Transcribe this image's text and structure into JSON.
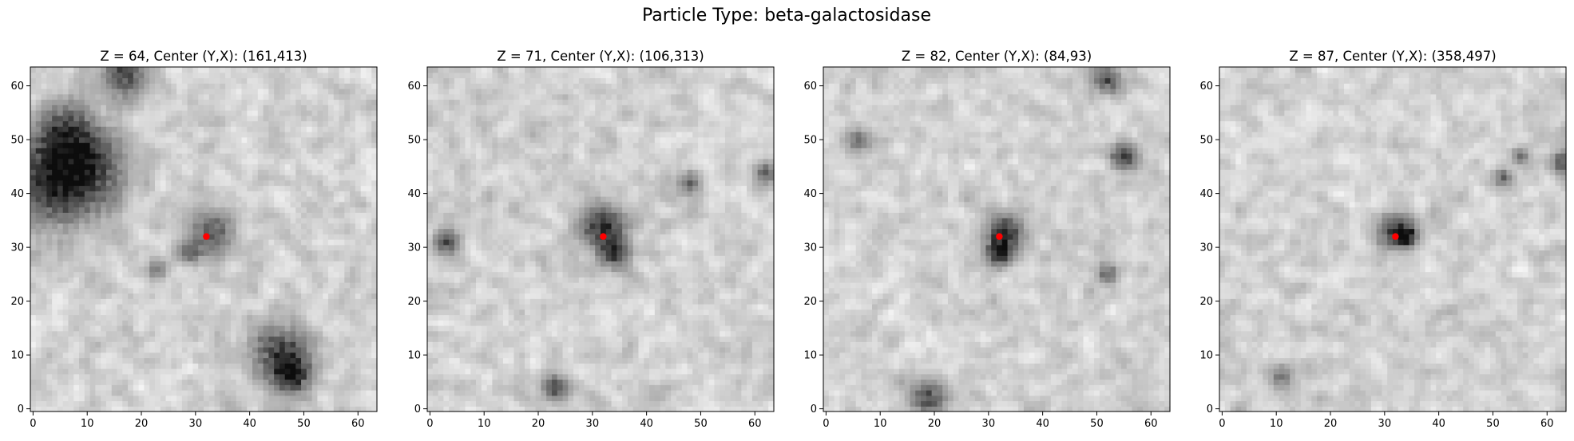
{
  "figure": {
    "suptitle": "Particle Type: beta-galactosidase"
  },
  "chart_data": [
    {
      "type": "heatmap",
      "title": "Z = 64, Center (Y,X): (161,413)",
      "xlim": [
        0,
        63
      ],
      "ylim": [
        0,
        63
      ],
      "xticks": [
        0,
        10,
        20,
        30,
        40,
        50,
        60
      ],
      "yticks": [
        0,
        10,
        20,
        30,
        40,
        50,
        60
      ],
      "colormap": "gray",
      "marker": {
        "x": 32,
        "y": 32,
        "color": "#ff0000"
      },
      "blobs": [
        {
          "x": 3,
          "y": 42,
          "r": 6,
          "d": 0.55
        },
        {
          "x": 10,
          "y": 45,
          "r": 5,
          "d": 0.5
        },
        {
          "x": 6,
          "y": 52,
          "r": 4,
          "d": 0.4
        },
        {
          "x": 17,
          "y": 62,
          "r": 3,
          "d": 0.55
        },
        {
          "x": 33,
          "y": 33,
          "r": 3,
          "d": 0.45
        },
        {
          "x": 46,
          "y": 10,
          "r": 4,
          "d": 0.6
        },
        {
          "x": 48,
          "y": 6,
          "r": 2,
          "d": 0.5
        },
        {
          "x": 23,
          "y": 26,
          "r": 1.5,
          "d": 0.35
        },
        {
          "x": 29,
          "y": 29,
          "r": 1.5,
          "d": 0.35
        }
      ]
    },
    {
      "type": "heatmap",
      "title": "Z = 71, Center (Y,X): (106,313)",
      "xlim": [
        0,
        63
      ],
      "ylim": [
        0,
        63
      ],
      "xticks": [
        0,
        10,
        20,
        30,
        40,
        50,
        60
      ],
      "yticks": [
        0,
        10,
        20,
        30,
        40,
        50,
        60
      ],
      "colormap": "gray",
      "marker": {
        "x": 32,
        "y": 32,
        "color": "#ff0000"
      },
      "blobs": [
        {
          "x": 32,
          "y": 34,
          "r": 3,
          "d": 0.6
        },
        {
          "x": 34,
          "y": 29,
          "r": 2,
          "d": 0.5
        },
        {
          "x": 3,
          "y": 31,
          "r": 1.8,
          "d": 0.5
        },
        {
          "x": 23,
          "y": 4,
          "r": 1.8,
          "d": 0.5
        },
        {
          "x": 48,
          "y": 42,
          "r": 1.5,
          "d": 0.4
        },
        {
          "x": 62,
          "y": 44,
          "r": 1.5,
          "d": 0.45
        }
      ]
    },
    {
      "type": "heatmap",
      "title": "Z = 82, Center (Y,X): (84,93)",
      "xlim": [
        0,
        63
      ],
      "ylim": [
        0,
        63
      ],
      "xticks": [
        0,
        10,
        20,
        30,
        40,
        50,
        60
      ],
      "yticks": [
        0,
        10,
        20,
        30,
        40,
        50,
        60
      ],
      "colormap": "gray",
      "marker": {
        "x": 32,
        "y": 32,
        "color": "#ff0000"
      },
      "blobs": [
        {
          "x": 33,
          "y": 33,
          "r": 2.5,
          "d": 0.6
        },
        {
          "x": 32,
          "y": 29,
          "r": 1.8,
          "d": 0.6
        },
        {
          "x": 55,
          "y": 47,
          "r": 1.8,
          "d": 0.55
        },
        {
          "x": 52,
          "y": 61,
          "r": 1.8,
          "d": 0.5
        },
        {
          "x": 19,
          "y": 2,
          "r": 2.5,
          "d": 0.5
        },
        {
          "x": 6,
          "y": 50,
          "r": 1.8,
          "d": 0.4
        },
        {
          "x": 52,
          "y": 25,
          "r": 1.5,
          "d": 0.4
        }
      ]
    },
    {
      "type": "heatmap",
      "title": "Z = 87, Center (Y,X): (358,497)",
      "xlim": [
        0,
        63
      ],
      "ylim": [
        0,
        63
      ],
      "xticks": [
        0,
        10,
        20,
        30,
        40,
        50,
        60
      ],
      "yticks": [
        0,
        10,
        20,
        30,
        40,
        50,
        60
      ],
      "colormap": "gray",
      "marker": {
        "x": 32,
        "y": 32,
        "color": "#ff0000"
      },
      "blobs": [
        {
          "x": 32,
          "y": 33,
          "r": 2.5,
          "d": 0.55
        },
        {
          "x": 34,
          "y": 32,
          "r": 1.2,
          "d": 0.6
        },
        {
          "x": 52,
          "y": 43,
          "r": 1.2,
          "d": 0.4
        },
        {
          "x": 55,
          "y": 47,
          "r": 1.2,
          "d": 0.4
        },
        {
          "x": 63,
          "y": 46,
          "r": 1.5,
          "d": 0.5
        },
        {
          "x": 11,
          "y": 6,
          "r": 1.5,
          "d": 0.35
        }
      ]
    }
  ]
}
